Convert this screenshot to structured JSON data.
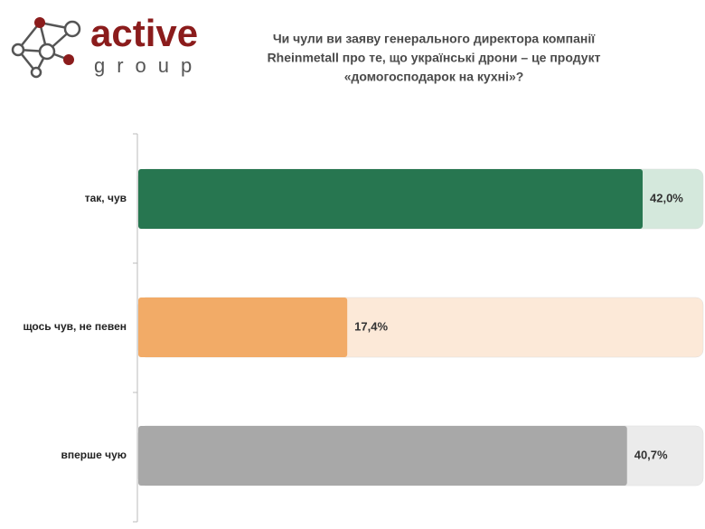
{
  "logo": {
    "name": "active",
    "sub": "group"
  },
  "chart_data": {
    "type": "bar",
    "orientation": "horizontal",
    "title": [
      "Чи чули ви заяву генерального директора компанії",
      "Rheinmetall про те, що українські дрони – це продукт",
      "«домогосподарок на кухні»?"
    ],
    "categories": [
      "так, чув",
      "щось чув, не певен",
      "вперше чую"
    ],
    "values": [
      42.0,
      17.4,
      40.7
    ],
    "value_labels": [
      "42,0%",
      "17,4%",
      "40,7%"
    ],
    "colors": [
      "#277650",
      "#f2ab67",
      "#a8a8a8"
    ]
  }
}
